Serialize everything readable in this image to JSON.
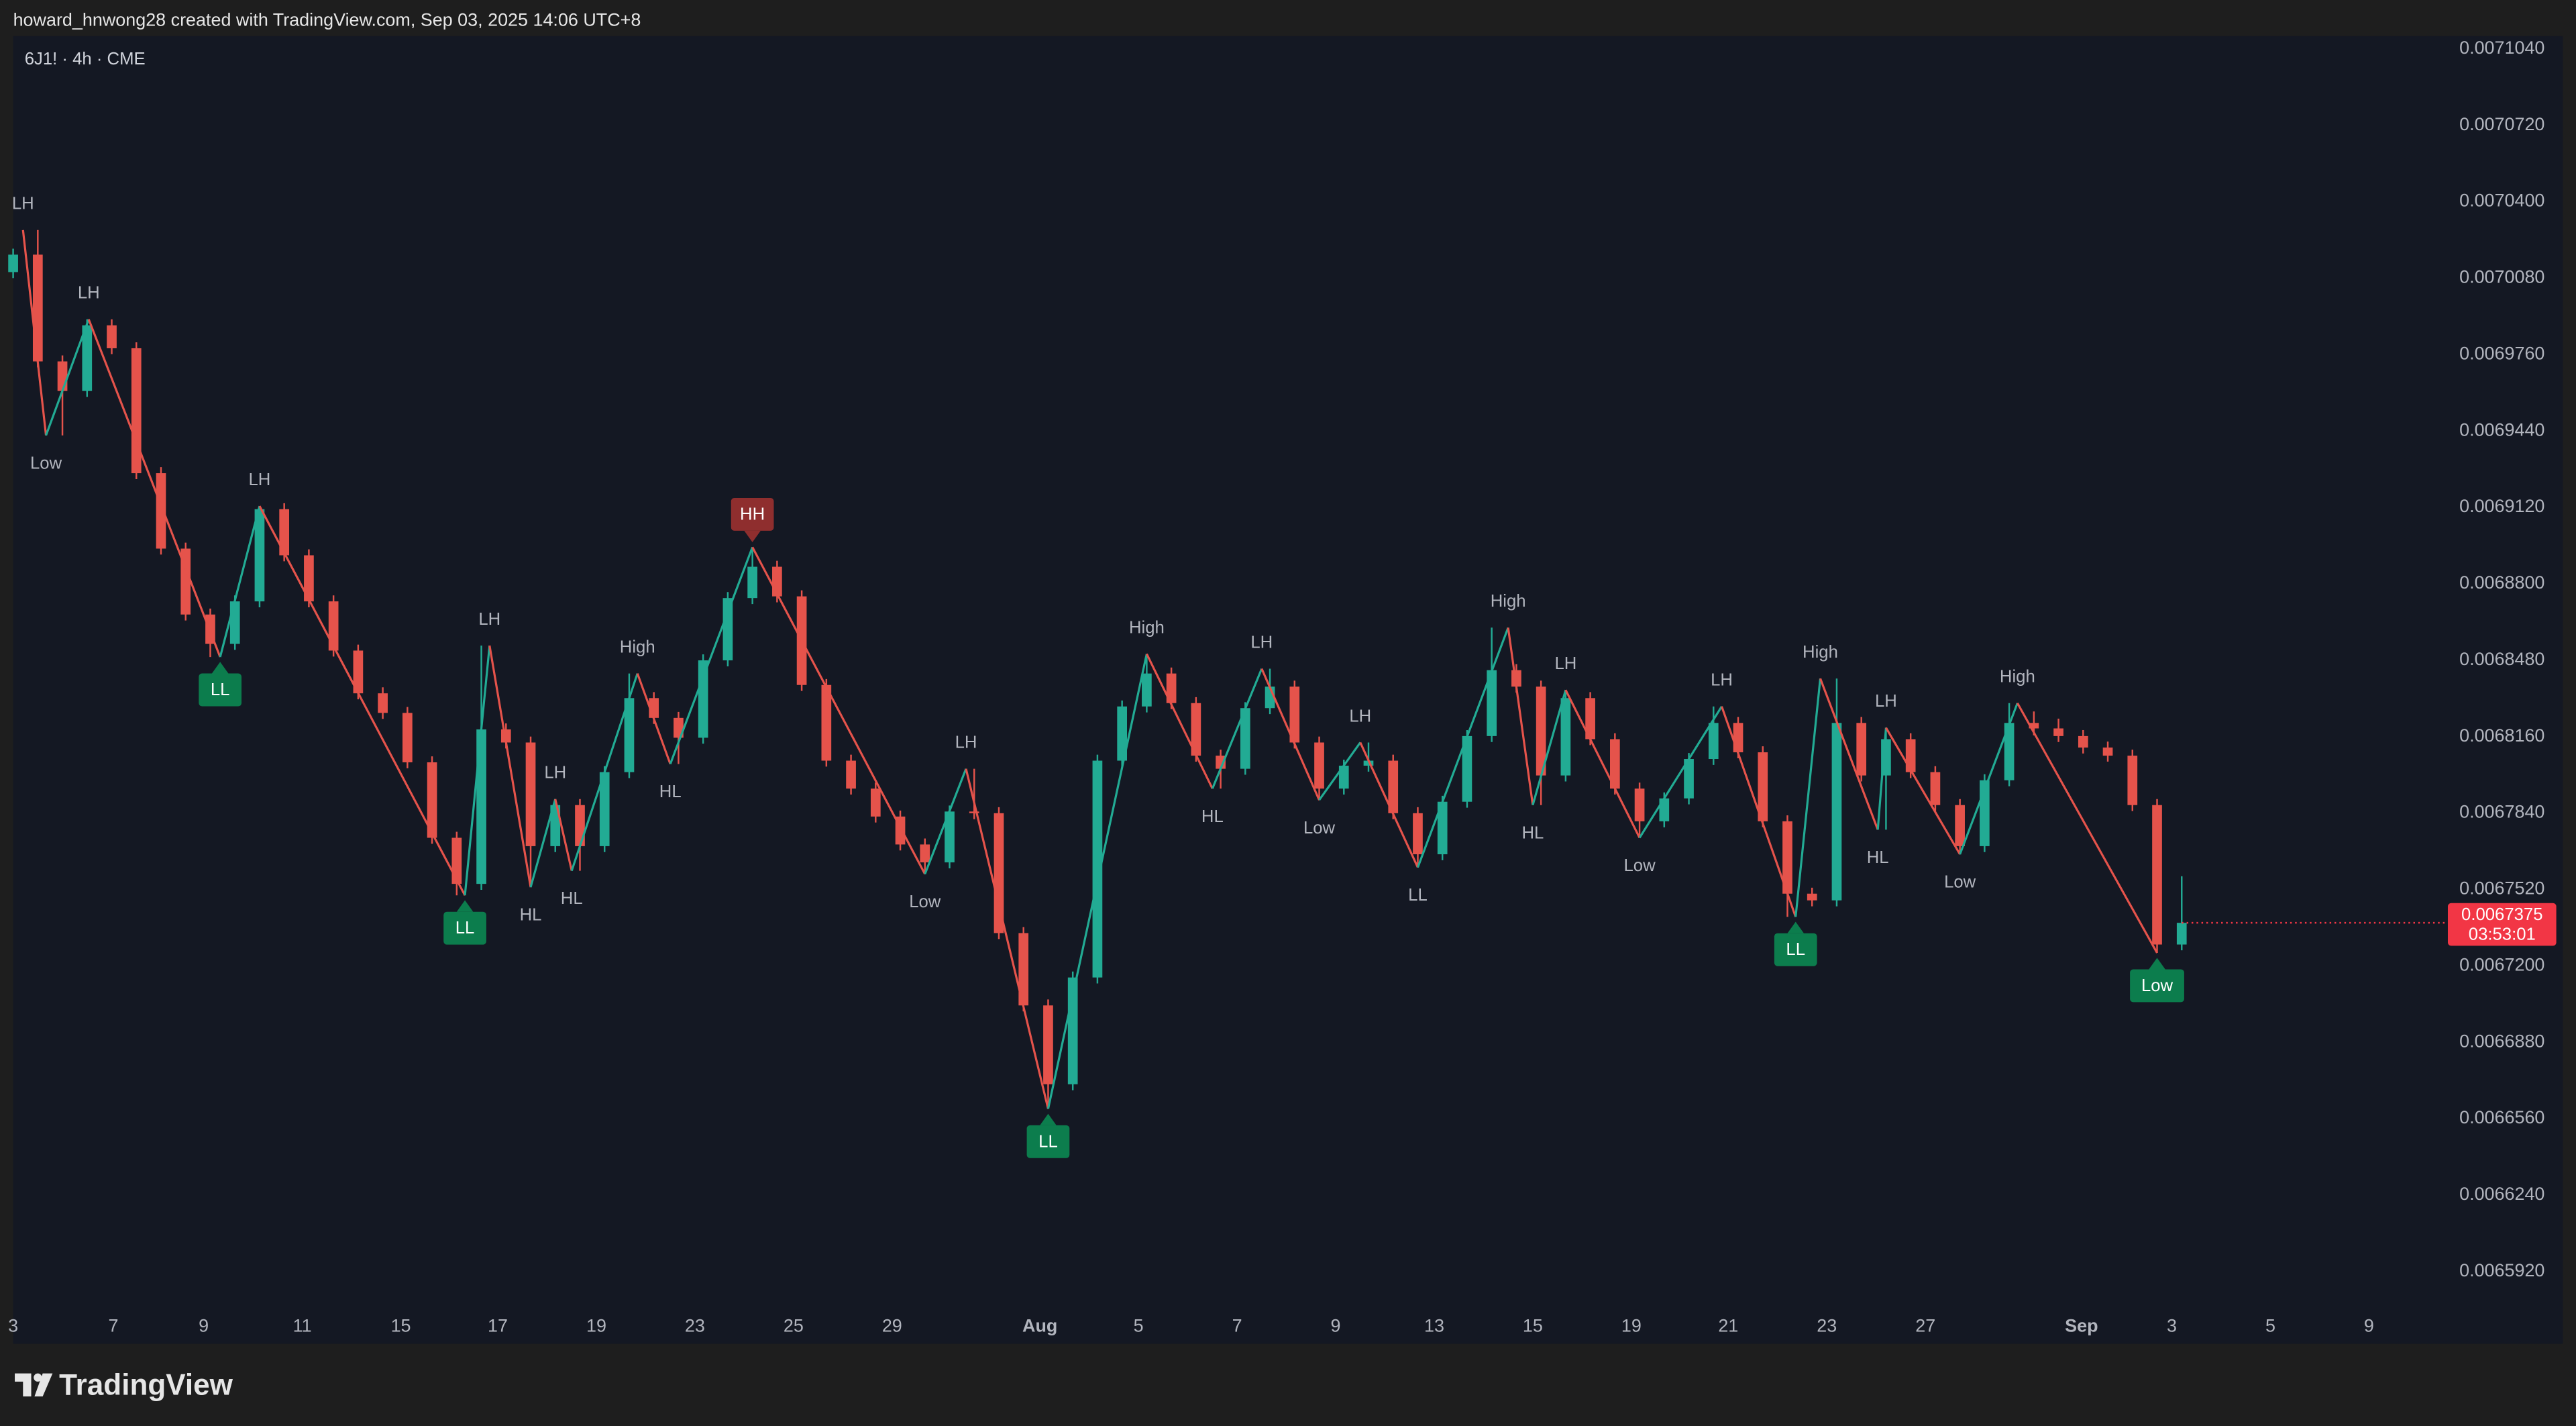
{
  "header": {
    "caption": "howard_hnwong28 created with TradingView.com, Sep 03, 2025 14:06 UTC+8"
  },
  "footer": {
    "brand": "TradingView"
  },
  "chart_data": {
    "type": "candlestick",
    "title": "6J1! · 4h · CME",
    "up_color": "#22ab94",
    "down_color": "#e5534b",
    "grid": false,
    "xlim": [
      0,
      296
    ],
    "ylim": [
      0.006577,
      0.0071088
    ],
    "yticks": [
      {
        "value": 0.007104,
        "label": "0.0071040"
      },
      {
        "value": 0.007072,
        "label": "0.0070720"
      },
      {
        "value": 0.00704,
        "label": "0.0070400"
      },
      {
        "value": 0.007008,
        "label": "0.0070080"
      },
      {
        "value": 0.006976,
        "label": "0.0069760"
      },
      {
        "value": 0.006944,
        "label": "0.0069440"
      },
      {
        "value": 0.006912,
        "label": "0.0069120"
      },
      {
        "value": 0.00688,
        "label": "0.0068800"
      },
      {
        "value": 0.006848,
        "label": "0.0068480"
      },
      {
        "value": 0.006816,
        "label": "0.0068160"
      },
      {
        "value": 0.006784,
        "label": "0.0067840"
      },
      {
        "value": 0.006752,
        "label": "0.0067520"
      },
      {
        "value": 0.00672,
        "label": "0.0067200"
      },
      {
        "value": 0.006688,
        "label": "0.0066880"
      },
      {
        "value": 0.006656,
        "label": "0.0066560"
      },
      {
        "value": 0.006624,
        "label": "0.0066240"
      },
      {
        "value": 0.006592,
        "label": "0.0065920"
      }
    ],
    "xticks": [
      {
        "value": 0,
        "label": "3"
      },
      {
        "value": 12.2,
        "label": "7"
      },
      {
        "value": 23.2,
        "label": "9"
      },
      {
        "value": 35.2,
        "label": "11"
      },
      {
        "value": 47.2,
        "label": "15"
      },
      {
        "value": 59,
        "label": "17"
      },
      {
        "value": 71,
        "label": "19"
      },
      {
        "value": 83,
        "label": "23"
      },
      {
        "value": 95,
        "label": "25"
      },
      {
        "value": 107,
        "label": "29"
      },
      {
        "value": 125,
        "label": "Aug",
        "major": true
      },
      {
        "value": 137,
        "label": "5"
      },
      {
        "value": 149,
        "label": "7"
      },
      {
        "value": 161,
        "label": "9"
      },
      {
        "value": 173,
        "label": "13"
      },
      {
        "value": 185,
        "label": "15"
      },
      {
        "value": 197,
        "label": "19"
      },
      {
        "value": 208.8,
        "label": "21"
      },
      {
        "value": 220.8,
        "label": "23"
      },
      {
        "value": 232.8,
        "label": "27"
      },
      {
        "value": 251.8,
        "label": "Sep",
        "major": true
      },
      {
        "value": 262.8,
        "label": "3"
      },
      {
        "value": 274.8,
        "label": "5"
      },
      {
        "value": 286.8,
        "label": "9"
      }
    ],
    "x": [
      0,
      3,
      6,
      9,
      12,
      15,
      18,
      21,
      24,
      27,
      30,
      33,
      36,
      39,
      42,
      45,
      48,
      51,
      54,
      57,
      60,
      63,
      66,
      69,
      72,
      75,
      78,
      81,
      84,
      87,
      90,
      93,
      96,
      99,
      102,
      105,
      108,
      111,
      114,
      117,
      120,
      123,
      126,
      129,
      132,
      135,
      138,
      141,
      144,
      147,
      150,
      153,
      156,
      159,
      162,
      165,
      168,
      171,
      174,
      177,
      180,
      183,
      186,
      189,
      192,
      195,
      198,
      201,
      204,
      207,
      210,
      213,
      216,
      219,
      222,
      225,
      228,
      231,
      234,
      237,
      240,
      243,
      246,
      249,
      252,
      255,
      258,
      261,
      264
    ],
    "candles": [
      [
        0.00701,
        0.0070198,
        0.0070075,
        0.0070173
      ],
      [
        0.0070173,
        0.0070276,
        0.0069701,
        0.0069726
      ],
      [
        0.0069726,
        0.0069751,
        0.0069416,
        0.0069602
      ],
      [
        0.0069602,
        0.0069902,
        0.0069577,
        0.0069877
      ],
      [
        0.0069877,
        0.0069902,
        0.0069756,
        0.0069781
      ],
      [
        0.0069781,
        0.0069806,
        0.0069233,
        0.0069258
      ],
      [
        0.0069258,
        0.0069283,
        0.0068917,
        0.0068942
      ],
      [
        0.0068942,
        0.0068967,
        0.0068641,
        0.0068666
      ],
      [
        0.0068666,
        0.0068691,
        0.0068488,
        0.0068543
      ],
      [
        0.0068543,
        0.0068746,
        0.0068518,
        0.0068721
      ],
      [
        0.0068721,
        0.006912,
        0.0068696,
        0.0069107
      ],
      [
        0.0069107,
        0.0069132,
        0.0068889,
        0.0068914
      ],
      [
        0.0068914,
        0.0068939,
        0.0068696,
        0.0068721
      ],
      [
        0.0068721,
        0.0068746,
        0.006849,
        0.0068515
      ],
      [
        0.0068515,
        0.006854,
        0.0068311,
        0.0068336
      ],
      [
        0.0068336,
        0.0068361,
        0.0068229,
        0.0068254
      ],
      [
        0.0068254,
        0.0068279,
        0.0068022,
        0.0068047
      ],
      [
        0.0068047,
        0.0068072,
        0.0067706,
        0.0067731
      ],
      [
        0.0067731,
        0.0067756,
        0.006749,
        0.0067538
      ],
      [
        0.0067538,
        0.0068536,
        0.0067513,
        0.0068185
      ],
      [
        0.0068185,
        0.006821,
        0.0068105,
        0.006813
      ],
      [
        0.006813,
        0.0068155,
        0.0067524,
        0.0067696
      ],
      [
        0.0067696,
        0.0067893,
        0.0067671,
        0.0067868
      ],
      [
        0.0067868,
        0.0067893,
        0.0067593,
        0.0067696
      ],
      [
        0.0067696,
        0.0068031,
        0.0067671,
        0.0068006
      ],
      [
        0.0068006,
        0.0068419,
        0.0067981,
        0.0068316
      ],
      [
        0.0068316,
        0.0068341,
        0.0068208,
        0.0068233
      ],
      [
        0.0068233,
        0.0068258,
        0.006804,
        0.006815
      ],
      [
        0.006815,
        0.0068499,
        0.0068125,
        0.0068474
      ],
      [
        0.0068474,
        0.006876,
        0.0068449,
        0.0068735
      ],
      [
        0.0068735,
        0.0068948,
        0.006871,
        0.0068866
      ],
      [
        0.0068866,
        0.0068891,
        0.0068717,
        0.0068742
      ],
      [
        0.0068742,
        0.0068767,
        0.0068346,
        0.0068371
      ],
      [
        0.0068371,
        0.0068396,
        0.0068029,
        0.0068054
      ],
      [
        0.0068054,
        0.0068079,
        0.0067912,
        0.0067937
      ],
      [
        0.0067937,
        0.0067962,
        0.0067795,
        0.006782
      ],
      [
        0.006782,
        0.0067845,
        0.0067678,
        0.0067703
      ],
      [
        0.0067703,
        0.0067728,
        0.0067579,
        0.0067628
      ],
      [
        0.0067628,
        0.0067866,
        0.0067603,
        0.0067841
      ],
      [
        0.0067841,
        0.006802,
        0.0067809,
        0.0067834
      ],
      [
        0.0067834,
        0.0067859,
        0.0067307,
        0.0067332
      ],
      [
        0.0067332,
        0.0067357,
        0.0067004,
        0.0067029
      ],
      [
        0.0067029,
        0.0067054,
        0.0066596,
        0.0066699
      ],
      [
        0.0066699,
        0.0067171,
        0.0066674,
        0.0067146
      ],
      [
        0.0067146,
        0.0068079,
        0.0067121,
        0.0068054
      ],
      [
        0.0068054,
        0.0068306,
        0.0068029,
        0.0068281
      ],
      [
        0.0068281,
        0.0068501,
        0.0068256,
        0.0068419
      ],
      [
        0.0068419,
        0.0068444,
        0.006827,
        0.0068295
      ],
      [
        0.0068295,
        0.006832,
        0.006805,
        0.0068075
      ],
      [
        0.0068075,
        0.00681,
        0.0067937,
        0.006802
      ],
      [
        0.006802,
        0.0068299,
        0.0067995,
        0.0068274
      ],
      [
        0.0068274,
        0.0068439,
        0.0068249,
        0.0068364
      ],
      [
        0.0068364,
        0.0068389,
        0.0068105,
        0.006813
      ],
      [
        0.006813,
        0.0068155,
        0.0067889,
        0.0067937
      ],
      [
        0.0067937,
        0.0068058,
        0.0067912,
        0.0068033
      ],
      [
        0.0068033,
        0.006813,
        0.0068008,
        0.0068054
      ],
      [
        0.0068054,
        0.0068079,
        0.0067809,
        0.0067834
      ],
      [
        0.0067834,
        0.0067859,
        0.0067607,
        0.0067662
      ],
      [
        0.0067662,
        0.0067907,
        0.0067637,
        0.0067882
      ],
      [
        0.0067882,
        0.0068182,
        0.0067857,
        0.0068157
      ],
      [
        0.0068157,
        0.0068611,
        0.0068132,
        0.0068433
      ],
      [
        0.0068433,
        0.0068458,
        0.0068339,
        0.0068364
      ],
      [
        0.0068364,
        0.0068389,
        0.0067868,
        0.0067992
      ],
      [
        0.0067992,
        0.006835,
        0.0067967,
        0.0068316
      ],
      [
        0.0068316,
        0.0068341,
        0.0068119,
        0.0068144
      ],
      [
        0.0068144,
        0.0068169,
        0.0067912,
        0.0067937
      ],
      [
        0.0067937,
        0.0067962,
        0.0067731,
        0.00678
      ],
      [
        0.00678,
        0.0067921,
        0.0067775,
        0.0067896
      ],
      [
        0.0067896,
        0.0068086,
        0.0067871,
        0.0068061
      ],
      [
        0.0068061,
        0.0068281,
        0.0068036,
        0.0068212
      ],
      [
        0.0068212,
        0.0068237,
        0.0068064,
        0.0068089
      ],
      [
        0.0068089,
        0.0068114,
        0.0067775,
        0.00678
      ],
      [
        0.00678,
        0.0067825,
        0.00674,
        0.0067497
      ],
      [
        0.0067497,
        0.0067522,
        0.0067444,
        0.0067469
      ],
      [
        0.0067469,
        0.0068398,
        0.0067444,
        0.0068212
      ],
      [
        0.0068212,
        0.0068237,
        0.0067967,
        0.0067992
      ],
      [
        0.0067992,
        0.0068192,
        0.0067765,
        0.0068144
      ],
      [
        0.0068144,
        0.0068169,
        0.0067981,
        0.0068006
      ],
      [
        0.0068006,
        0.0068031,
        0.0067843,
        0.0067868
      ],
      [
        0.0067868,
        0.0067893,
        0.0067662,
        0.0067696
      ],
      [
        0.0067696,
        0.0067997,
        0.0067671,
        0.0067972
      ],
      [
        0.0067972,
        0.0068295,
        0.0067947,
        0.0068212
      ],
      [
        0.0068212,
        0.006826,
        0.006816,
        0.0068189
      ],
      [
        0.0068189,
        0.006823,
        0.0068132,
        0.0068157
      ],
      [
        0.0068157,
        0.0068182,
        0.0068084,
        0.0068109
      ],
      [
        0.0068109,
        0.0068134,
        0.006805,
        0.0068075
      ],
      [
        0.0068075,
        0.00681,
        0.0067843,
        0.0067868
      ],
      [
        0.0067868,
        0.0067893,
        0.0067249,
        0.0067284
      ],
      [
        0.0067284,
        0.006757,
        0.006726,
        0.0067375
      ]
    ],
    "swings": [
      {
        "label": "LH",
        "x": 1.2,
        "price": 0.0070276,
        "color": "#22ab94"
      },
      {
        "label": "Low",
        "x": 4,
        "price": 0.0069416,
        "color": "#e5534b"
      },
      {
        "label": "LH",
        "x": 9.2,
        "price": 0.0069902,
        "color": "#22ab94"
      },
      {
        "label": "LL",
        "x": 25.2,
        "price": 0.0068488,
        "color": "#0c7d4d",
        "boxed": true
      },
      {
        "label": "LH",
        "x": 30,
        "price": 0.006912,
        "color": "#22ab94"
      },
      {
        "label": "LL",
        "x": 55,
        "price": 0.006749,
        "color": "#0c7d4d",
        "boxed": true
      },
      {
        "label": "LH",
        "x": 58,
        "price": 0.0068536,
        "color": "#22ab94"
      },
      {
        "label": "HL",
        "x": 63,
        "price": 0.0067524,
        "color": "#e5534b"
      },
      {
        "label": "LH",
        "x": 66,
        "price": 0.0067893,
        "color": "#22ab94"
      },
      {
        "label": "HL",
        "x": 68,
        "price": 0.0067593,
        "color": "#e5534b"
      },
      {
        "label": "High",
        "x": 76,
        "price": 0.0068419,
        "color": "#22ab94"
      },
      {
        "label": "HL",
        "x": 80,
        "price": 0.006804,
        "color": "#e5534b"
      },
      {
        "label": "HH",
        "x": 90,
        "price": 0.0068948,
        "color": "#8f2e2e",
        "boxed": true
      },
      {
        "label": "Low",
        "x": 111,
        "price": 0.0067579,
        "color": "#e5534b"
      },
      {
        "label": "LH",
        "x": 116,
        "price": 0.006802,
        "color": "#22ab94"
      },
      {
        "label": "LL",
        "x": 126,
        "price": 0.0066596,
        "color": "#0c7d4d",
        "boxed": true
      },
      {
        "label": "High",
        "x": 138,
        "price": 0.0068501,
        "color": "#22ab94"
      },
      {
        "label": "HL",
        "x": 146,
        "price": 0.0067937,
        "color": "#e5534b"
      },
      {
        "label": "LH",
        "x": 152,
        "price": 0.0068439,
        "color": "#22ab94"
      },
      {
        "label": "Low",
        "x": 159,
        "price": 0.0067889,
        "color": "#e5534b"
      },
      {
        "label": "LH",
        "x": 164,
        "price": 0.006813,
        "color": "#22ab94"
      },
      {
        "label": "LL",
        "x": 171,
        "price": 0.0067607,
        "color": "#e5534b"
      },
      {
        "label": "High",
        "x": 182,
        "price": 0.0068611,
        "color": "#22ab94"
      },
      {
        "label": "HL",
        "x": 185,
        "price": 0.0067868,
        "color": "#e5534b"
      },
      {
        "label": "LH",
        "x": 189,
        "price": 0.006835,
        "color": "#22ab94"
      },
      {
        "label": "Low",
        "x": 198,
        "price": 0.0067731,
        "color": "#e5534b"
      },
      {
        "label": "LH",
        "x": 208,
        "price": 0.0068281,
        "color": "#22ab94"
      },
      {
        "label": "LL",
        "x": 217,
        "price": 0.00674,
        "color": "#0c7d4d",
        "boxed": true
      },
      {
        "label": "High",
        "x": 220,
        "price": 0.0068398,
        "color": "#22ab94"
      },
      {
        "label": "HL",
        "x": 227,
        "price": 0.0067765,
        "color": "#e5534b"
      },
      {
        "label": "LH",
        "x": 228,
        "price": 0.0068192,
        "color": "#22ab94"
      },
      {
        "label": "Low",
        "x": 237,
        "price": 0.0067662,
        "color": "#e5534b"
      },
      {
        "label": "High",
        "x": 244,
        "price": 0.0068295,
        "color": "#22ab94"
      },
      {
        "label": "Low",
        "x": 261,
        "price": 0.0067249,
        "color": "#0c7d4d",
        "boxed": true
      }
    ],
    "last_price": 0.0067375,
    "countdown": "03:53:01",
    "last_price_color": "#f23645"
  }
}
